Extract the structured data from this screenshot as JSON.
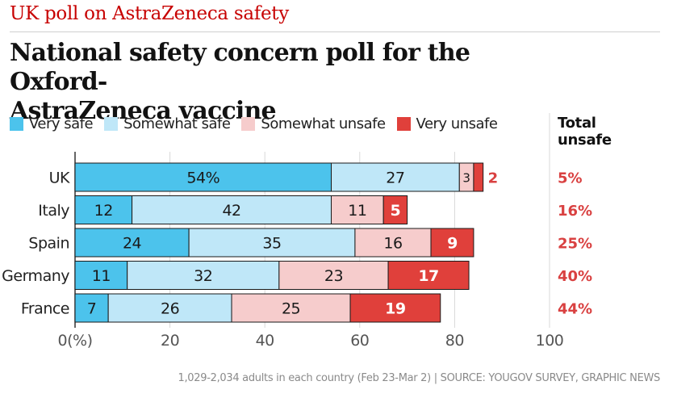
{
  "header": {
    "kicker": "UK poll on AstraZeneca safety",
    "title_line1": "National safety concern poll for the Oxford-",
    "title_line2": "AstraZeneca vaccine"
  },
  "total_label_line1": "Total",
  "total_label_line2": "unsafe",
  "source": "1,029-2,034 adults in each country (Feb 23-Mar 2) | SOURCE: YOUGOV SURVEY, GRAPHIC NEWS",
  "colors": {
    "very_safe": "#4cc3ec",
    "somewhat_safe": "#bfe7f8",
    "somewhat_unsafe": "#f6cccc",
    "very_unsafe": "#e0403b",
    "total_text": "#d94141",
    "gridline": "#d8d8d8",
    "bar_border": "#1a1a1a"
  },
  "chart_data": {
    "type": "bar",
    "orientation": "horizontal",
    "stacked": true,
    "categories": [
      "UK",
      "Italy",
      "Spain",
      "Germany",
      "France"
    ],
    "series": [
      {
        "name": "Very safe",
        "values": [
          54,
          12,
          24,
          11,
          7
        ],
        "labels": [
          "54%",
          "12",
          "24",
          "11",
          "7"
        ]
      },
      {
        "name": "Somewhat safe",
        "values": [
          27,
          42,
          35,
          32,
          26
        ],
        "labels": [
          "27",
          "42",
          "35",
          "32",
          "26"
        ]
      },
      {
        "name": "Somewhat unsafe",
        "values": [
          3,
          11,
          16,
          23,
          25
        ],
        "labels": [
          "3",
          "11",
          "16",
          "23",
          "25"
        ]
      },
      {
        "name": "Very unsafe",
        "values": [
          2,
          5,
          9,
          17,
          19
        ],
        "labels": [
          "2",
          "5",
          "9",
          "17",
          "19"
        ]
      }
    ],
    "total_unsafe": [
      "5%",
      "16%",
      "25%",
      "40%",
      "44%"
    ],
    "xlim": [
      0,
      100
    ],
    "xticks": [
      0,
      20,
      40,
      60,
      80,
      100
    ],
    "xtick_labels": [
      "0(%)",
      "20",
      "40",
      "60",
      "80",
      "100"
    ],
    "grid": true
  }
}
